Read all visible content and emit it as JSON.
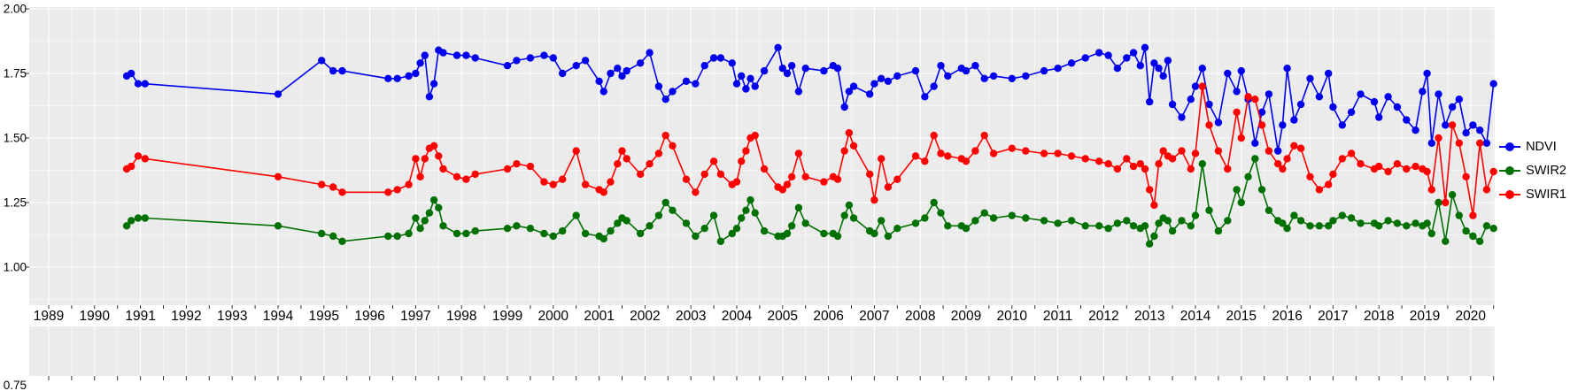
{
  "chart_data": {
    "type": "line",
    "mode": "lines+markers",
    "title": "",
    "xlabel": "",
    "ylabel": "",
    "grid": true,
    "legend_position": "right",
    "x_axis": {
      "tick_labels": [
        "1989",
        "1990",
        "1991",
        "1992",
        "1993",
        "1994",
        "1995",
        "1996",
        "1997",
        "1998",
        "1999",
        "2000",
        "2001",
        "2002",
        "2003",
        "2004",
        "2005",
        "2006",
        "2007",
        "2008",
        "2009",
        "2010",
        "2011",
        "2012",
        "2013",
        "2014",
        "2015",
        "2016",
        "2017",
        "2018",
        "2019",
        "2020"
      ],
      "tick_values": [
        1989,
        1990,
        1991,
        1992,
        1993,
        1994,
        1995,
        1996,
        1997,
        1998,
        1999,
        2000,
        2001,
        2002,
        2003,
        2004,
        2005,
        2006,
        2007,
        2008,
        2009,
        2010,
        2011,
        2012,
        2013,
        2014,
        2015,
        2016,
        2017,
        2018,
        2019,
        2020
      ],
      "range": [
        1988.55,
        2020.6
      ]
    },
    "y_axis": {
      "tick_labels": [
        "2.00",
        "1.75",
        "1.50",
        "1.25",
        "1.00",
        "0.75"
      ],
      "tick_values": [
        2.0,
        1.75,
        1.5,
        1.25,
        1.0,
        0.75
      ],
      "range_main_panel": [
        0.85,
        2.01
      ]
    },
    "x": [
      1990.7,
      1990.8,
      1990.95,
      1991.1,
      1994.0,
      1994.95,
      1995.2,
      1995.4,
      1996.4,
      1996.6,
      1996.85,
      1997.0,
      1997.1,
      1997.2,
      1997.3,
      1997.4,
      1997.5,
      1997.6,
      1997.9,
      1998.1,
      1998.3,
      1999.0,
      1999.2,
      1999.5,
      1999.8,
      2000.0,
      2000.2,
      2000.5,
      2000.7,
      2001.0,
      2001.1,
      2001.25,
      2001.4,
      2001.5,
      2001.6,
      2001.9,
      2002.1,
      2002.3,
      2002.45,
      2002.6,
      2002.9,
      2003.1,
      2003.3,
      2003.5,
      2003.65,
      2003.9,
      2004.0,
      2004.1,
      2004.2,
      2004.3,
      2004.4,
      2004.6,
      2004.9,
      2005.0,
      2005.1,
      2005.2,
      2005.35,
      2005.5,
      2005.9,
      2006.1,
      2006.2,
      2006.35,
      2006.45,
      2006.55,
      2006.9,
      2007.0,
      2007.15,
      2007.3,
      2007.5,
      2007.9,
      2008.1,
      2008.3,
      2008.45,
      2008.6,
      2008.9,
      2009.0,
      2009.2,
      2009.4,
      2009.6,
      2010.0,
      2010.3,
      2010.7,
      2011.0,
      2011.3,
      2011.6,
      2011.9,
      2012.1,
      2012.3,
      2012.5,
      2012.65,
      2012.8,
      2012.9,
      2013.0,
      2013.1,
      2013.2,
      2013.3,
      2013.4,
      2013.5,
      2013.7,
      2013.9,
      2014.0,
      2014.15,
      2014.3,
      2014.5,
      2014.7,
      2014.9,
      2015.0,
      2015.15,
      2015.3,
      2015.45,
      2015.6,
      2015.8,
      2015.9,
      2016.0,
      2016.15,
      2016.3,
      2016.5,
      2016.7,
      2016.9,
      2017.0,
      2017.2,
      2017.4,
      2017.6,
      2017.9,
      2018.0,
      2018.2,
      2018.4,
      2018.6,
      2018.8,
      2018.95,
      2019.05,
      2019.15,
      2019.3,
      2019.45,
      2019.6,
      2019.75,
      2019.9,
      2020.05,
      2020.2,
      2020.35,
      2020.5
    ],
    "series": [
      {
        "name": "NDVI",
        "color": "#0000EE",
        "values": [
          1.74,
          1.75,
          1.71,
          1.71,
          1.67,
          1.8,
          1.76,
          1.76,
          1.73,
          1.73,
          1.74,
          1.75,
          1.79,
          1.82,
          1.66,
          1.71,
          1.84,
          1.83,
          1.82,
          1.82,
          1.81,
          1.78,
          1.8,
          1.81,
          1.82,
          1.81,
          1.75,
          1.78,
          1.8,
          1.72,
          1.68,
          1.75,
          1.77,
          1.74,
          1.76,
          1.79,
          1.83,
          1.7,
          1.65,
          1.68,
          1.72,
          1.71,
          1.78,
          1.81,
          1.81,
          1.79,
          1.71,
          1.74,
          1.69,
          1.73,
          1.7,
          1.76,
          1.85,
          1.77,
          1.75,
          1.78,
          1.68,
          1.77,
          1.76,
          1.78,
          1.77,
          1.62,
          1.68,
          1.7,
          1.67,
          1.71,
          1.73,
          1.72,
          1.74,
          1.76,
          1.66,
          1.7,
          1.78,
          1.74,
          1.77,
          1.76,
          1.78,
          1.73,
          1.74,
          1.73,
          1.74,
          1.76,
          1.77,
          1.79,
          1.81,
          1.83,
          1.82,
          1.77,
          1.81,
          1.83,
          1.78,
          1.85,
          1.64,
          1.79,
          1.77,
          1.74,
          1.8,
          1.63,
          1.58,
          1.65,
          1.7,
          1.77,
          1.63,
          1.56,
          1.75,
          1.68,
          1.76,
          1.65,
          1.48,
          1.6,
          1.67,
          1.45,
          1.55,
          1.77,
          1.57,
          1.63,
          1.73,
          1.66,
          1.75,
          1.62,
          1.55,
          1.6,
          1.67,
          1.64,
          1.58,
          1.66,
          1.62,
          1.57,
          1.53,
          1.68,
          1.75,
          1.48,
          1.67,
          1.55,
          1.62,
          1.65,
          1.52,
          1.55,
          1.53,
          1.48,
          1.71
        ]
      },
      {
        "name": "SWIR2",
        "color": "#007000",
        "values": [
          1.16,
          1.18,
          1.19,
          1.19,
          1.16,
          1.13,
          1.12,
          1.1,
          1.12,
          1.12,
          1.13,
          1.19,
          1.15,
          1.18,
          1.21,
          1.26,
          1.23,
          1.16,
          1.13,
          1.13,
          1.14,
          1.15,
          1.16,
          1.15,
          1.13,
          1.12,
          1.14,
          1.2,
          1.13,
          1.12,
          1.11,
          1.14,
          1.17,
          1.19,
          1.18,
          1.13,
          1.16,
          1.2,
          1.25,
          1.22,
          1.17,
          1.12,
          1.15,
          1.2,
          1.1,
          1.13,
          1.15,
          1.19,
          1.22,
          1.26,
          1.21,
          1.14,
          1.12,
          1.12,
          1.13,
          1.16,
          1.23,
          1.17,
          1.13,
          1.13,
          1.12,
          1.2,
          1.24,
          1.19,
          1.14,
          1.13,
          1.18,
          1.12,
          1.15,
          1.17,
          1.19,
          1.25,
          1.21,
          1.16,
          1.16,
          1.15,
          1.18,
          1.21,
          1.19,
          1.2,
          1.19,
          1.18,
          1.17,
          1.18,
          1.16,
          1.16,
          1.15,
          1.17,
          1.18,
          1.16,
          1.15,
          1.16,
          1.09,
          1.12,
          1.17,
          1.19,
          1.18,
          1.14,
          1.18,
          1.16,
          1.2,
          1.4,
          1.22,
          1.14,
          1.18,
          1.3,
          1.25,
          1.35,
          1.42,
          1.3,
          1.22,
          1.18,
          1.17,
          1.15,
          1.2,
          1.18,
          1.16,
          1.16,
          1.16,
          1.18,
          1.2,
          1.19,
          1.17,
          1.17,
          1.16,
          1.18,
          1.17,
          1.16,
          1.17,
          1.16,
          1.17,
          1.13,
          1.25,
          1.1,
          1.28,
          1.2,
          1.14,
          1.12,
          1.1,
          1.16,
          1.15
        ]
      },
      {
        "name": "SWIR1",
        "color": "#FF0000",
        "values": [
          1.38,
          1.39,
          1.43,
          1.42,
          1.35,
          1.32,
          1.31,
          1.29,
          1.29,
          1.3,
          1.32,
          1.42,
          1.35,
          1.42,
          1.46,
          1.47,
          1.43,
          1.38,
          1.35,
          1.34,
          1.36,
          1.38,
          1.4,
          1.39,
          1.33,
          1.32,
          1.34,
          1.45,
          1.32,
          1.3,
          1.29,
          1.33,
          1.4,
          1.45,
          1.42,
          1.36,
          1.4,
          1.44,
          1.51,
          1.47,
          1.34,
          1.29,
          1.36,
          1.41,
          1.36,
          1.32,
          1.33,
          1.41,
          1.45,
          1.5,
          1.51,
          1.38,
          1.31,
          1.3,
          1.32,
          1.35,
          1.44,
          1.35,
          1.33,
          1.35,
          1.34,
          1.45,
          1.52,
          1.47,
          1.36,
          1.26,
          1.42,
          1.31,
          1.34,
          1.43,
          1.41,
          1.51,
          1.44,
          1.43,
          1.42,
          1.41,
          1.45,
          1.51,
          1.44,
          1.46,
          1.45,
          1.44,
          1.44,
          1.43,
          1.42,
          1.41,
          1.4,
          1.38,
          1.42,
          1.39,
          1.4,
          1.38,
          1.3,
          1.24,
          1.4,
          1.45,
          1.43,
          1.42,
          1.45,
          1.38,
          1.44,
          1.7,
          1.55,
          1.45,
          1.38,
          1.6,
          1.5,
          1.66,
          1.65,
          1.55,
          1.45,
          1.4,
          1.38,
          1.42,
          1.47,
          1.46,
          1.35,
          1.3,
          1.32,
          1.36,
          1.42,
          1.44,
          1.4,
          1.38,
          1.39,
          1.37,
          1.4,
          1.38,
          1.39,
          1.38,
          1.37,
          1.3,
          1.5,
          1.25,
          1.55,
          1.48,
          1.35,
          1.2,
          1.48,
          1.3,
          1.37
        ]
      }
    ],
    "style": {
      "panel_bg": "#EBEBEB",
      "grid_color": "#FFFFFF",
      "tick_color": "#333333",
      "label_color": "#000000"
    }
  }
}
